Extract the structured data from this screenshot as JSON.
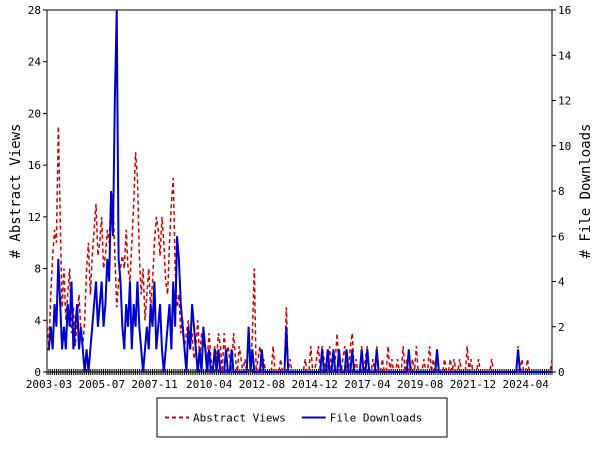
{
  "chart_data": {
    "type": "line",
    "y_label": "# Abstract Views",
    "y2_label": "# File Downloads",
    "x": [
      "2003-03",
      null,
      null,
      null,
      null,
      null,
      null,
      null,
      null,
      null,
      null,
      null,
      null,
      null,
      null,
      null,
      null,
      null,
      null,
      null,
      null,
      null,
      null,
      null,
      null,
      null,
      null,
      null,
      "2005-07",
      null,
      null,
      null,
      null,
      null,
      null,
      null,
      null,
      null,
      null,
      null,
      null,
      null,
      null,
      null,
      null,
      null,
      null,
      null,
      null,
      null,
      null,
      null,
      null,
      null,
      null,
      null,
      "2007-11",
      null,
      null,
      null,
      null,
      null,
      null,
      null,
      null,
      null,
      null,
      null,
      null,
      null,
      null,
      null,
      null,
      null,
      null,
      null,
      null,
      null,
      null,
      null,
      null,
      null,
      null,
      null,
      null,
      "2010-04",
      null,
      null,
      null,
      null,
      null,
      null,
      null,
      null,
      null,
      null,
      null,
      null,
      null,
      null,
      null,
      null,
      null,
      null,
      null,
      null,
      null,
      null,
      null,
      null,
      null,
      null,
      null,
      "2012-08",
      null,
      null,
      null,
      null,
      null,
      null,
      null,
      null,
      null,
      null,
      null,
      null,
      null,
      null,
      null,
      null,
      null,
      null,
      null,
      null,
      null,
      null,
      null,
      null,
      null,
      null,
      null,
      "2014-12",
      null,
      null,
      null,
      null,
      null,
      null,
      null,
      null,
      null,
      null,
      null,
      null,
      null,
      null,
      null,
      null,
      null,
      null,
      null,
      null,
      null,
      null,
      null,
      null,
      null,
      null,
      null,
      "2017-04",
      null,
      null,
      null,
      null,
      null,
      null,
      null,
      null,
      null,
      null,
      null,
      null,
      null,
      null,
      null,
      null,
      null,
      null,
      null,
      null,
      null,
      null,
      null,
      null,
      null,
      null,
      null,
      "2019-08",
      null,
      null,
      null,
      null,
      null,
      null,
      null,
      null,
      null,
      null,
      null,
      null,
      null,
      null,
      null,
      null,
      null,
      null,
      null,
      null,
      null,
      null,
      null,
      null,
      null,
      null,
      null,
      "2021-12",
      null,
      null,
      null,
      null,
      null,
      null,
      null,
      null,
      null,
      null,
      null,
      null,
      null,
      null,
      null,
      null,
      null,
      null,
      null,
      null,
      null,
      null,
      null,
      null,
      null,
      null,
      null,
      "2024-04",
      null,
      null,
      null,
      null,
      null,
      null,
      null,
      null,
      null,
      null,
      null,
      null,
      null,
      null,
      null
    ],
    "series": [
      {
        "name": "Abstract Views",
        "color": "#cc0000",
        "line_style": "dashed",
        "axis": "y",
        "values": [
          4,
          2,
          6,
          9,
          11,
          10,
          19,
          12,
          5,
          8,
          4,
          6,
          8,
          3,
          5,
          2,
          4,
          6,
          3,
          2,
          4,
          8,
          10,
          6,
          9,
          11,
          13,
          9,
          10,
          12,
          8,
          9,
          11,
          10,
          14,
          13,
          9,
          5,
          7,
          8,
          9,
          8,
          11,
          8,
          7,
          10,
          13,
          17,
          15,
          9,
          6,
          8,
          4,
          6,
          8,
          5,
          7,
          10,
          12,
          11,
          9,
          12,
          10,
          7,
          6,
          10,
          13,
          15,
          8,
          5,
          6,
          3,
          4,
          2,
          3,
          4,
          2,
          3,
          1,
          2,
          4,
          1,
          3,
          2,
          2,
          1,
          3,
          1,
          0,
          2,
          1,
          3,
          2,
          0,
          3,
          1,
          2,
          1,
          0,
          3,
          1,
          0,
          2,
          1,
          0,
          1,
          0,
          0,
          0,
          3,
          8,
          0,
          1,
          2,
          0,
          1,
          0,
          0,
          0,
          0,
          2,
          0,
          0,
          0,
          1,
          0,
          0,
          5,
          0,
          1,
          0,
          0,
          0,
          0,
          0,
          0,
          0,
          1,
          0,
          0,
          2,
          0,
          0,
          1,
          2,
          0,
          2,
          1,
          0,
          0,
          2,
          0,
          0,
          1,
          3,
          0,
          0,
          1,
          2,
          0,
          0,
          2,
          3,
          0,
          1,
          0,
          0,
          2,
          0,
          1,
          2,
          0,
          0,
          1,
          0,
          2,
          0,
          0,
          1,
          0,
          0,
          2,
          0,
          1,
          0,
          0,
          1,
          0,
          0,
          2,
          0,
          1,
          0,
          0,
          1,
          0,
          2,
          0,
          0,
          0,
          1,
          0,
          0,
          2,
          0,
          1,
          0,
          1,
          0,
          0,
          0,
          1,
          0,
          0,
          1,
          0,
          1,
          0,
          0,
          1,
          0,
          0,
          0,
          2,
          0,
          1,
          0,
          0,
          0,
          1,
          0,
          0,
          0,
          0,
          0,
          0,
          1,
          0,
          0,
          0,
          0,
          0,
          0,
          0,
          0,
          0,
          0,
          0,
          0,
          0,
          2,
          0,
          1,
          0,
          0,
          1,
          0,
          0,
          0,
          0,
          0,
          0,
          0,
          0,
          0,
          0,
          0,
          0,
          1
        ]
      },
      {
        "name": "File Downloads",
        "color": "#0000cc",
        "line_style": "solid",
        "axis": "y2",
        "values": [
          1,
          1,
          2,
          1,
          3,
          2,
          5,
          3,
          1,
          2,
          1,
          3,
          2,
          4,
          1,
          2,
          3,
          1,
          2,
          1,
          0,
          1,
          0,
          1,
          2,
          3,
          4,
          2,
          3,
          4,
          2,
          3,
          5,
          4,
          8,
          6,
          12,
          16,
          5,
          4,
          2,
          1,
          3,
          2,
          4,
          1,
          3,
          2,
          4,
          2,
          1,
          0,
          1,
          2,
          1,
          3,
          2,
          4,
          1,
          2,
          3,
          1,
          0,
          1,
          2,
          3,
          1,
          4,
          2,
          6,
          5,
          3,
          2,
          1,
          0,
          2,
          1,
          3,
          2,
          1,
          0,
          1,
          0,
          2,
          1,
          0,
          1,
          0,
          0,
          1,
          0,
          1,
          0,
          0,
          0,
          1,
          0,
          0,
          1,
          0,
          0,
          0,
          0,
          0,
          0,
          0,
          0,
          2,
          0,
          1,
          0,
          0,
          0,
          0,
          1,
          0,
          0,
          0,
          0,
          0,
          0,
          0,
          0,
          0,
          0,
          0,
          0,
          2,
          0,
          0,
          0,
          0,
          0,
          0,
          0,
          0,
          0,
          0,
          0,
          0,
          0,
          0,
          0,
          0,
          0,
          0,
          1,
          0,
          0,
          1,
          0,
          0,
          1,
          0,
          0,
          1,
          0,
          0,
          0,
          1,
          0,
          0,
          1,
          0,
          0,
          0,
          0,
          1,
          0,
          0,
          1,
          0,
          0,
          0,
          0,
          1,
          0,
          0,
          0,
          0,
          0,
          0,
          0,
          0,
          0,
          0,
          0,
          0,
          0,
          0,
          0,
          0,
          1,
          0,
          0,
          0,
          0,
          0,
          0,
          0,
          0,
          0,
          0,
          0,
          0,
          0,
          0,
          1,
          0,
          0,
          0,
          0,
          0,
          0,
          0,
          0,
          0,
          0,
          0,
          0,
          0,
          0,
          0,
          0,
          0,
          0,
          0,
          0,
          0,
          0,
          0,
          0,
          0,
          0,
          0,
          0,
          0,
          0,
          0,
          0,
          0,
          0,
          0,
          0,
          0,
          0,
          0,
          0,
          0,
          0,
          1,
          0,
          0,
          0,
          0,
          0,
          0,
          0,
          0,
          0,
          0,
          0,
          0,
          0,
          0,
          0,
          0,
          0,
          0
        ]
      }
    ],
    "ylim": [
      0,
      28
    ],
    "yticks": [
      0,
      4,
      8,
      12,
      16,
      20,
      24,
      28
    ],
    "y2lim": [
      0,
      16
    ],
    "y2ticks": [
      0,
      2,
      4,
      6,
      8,
      10,
      12,
      14,
      16
    ],
    "grid": false,
    "legend": "bottom"
  }
}
